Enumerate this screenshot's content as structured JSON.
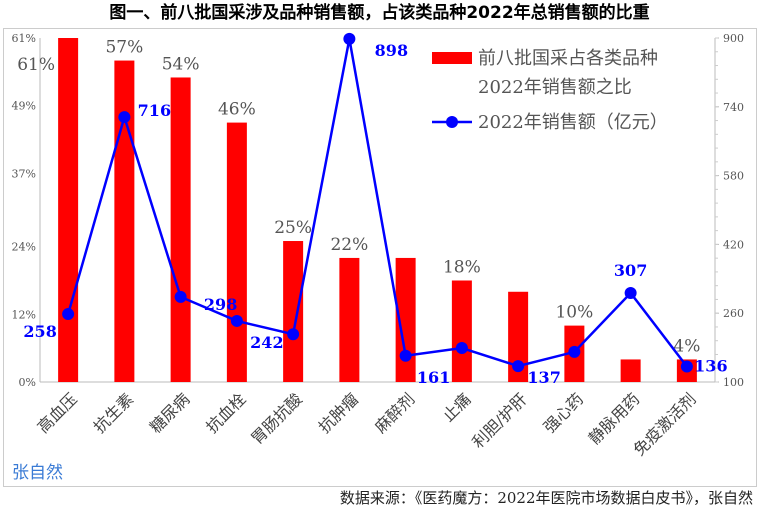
{
  "chart_data": {
    "type": "bar+line",
    "title": "图一、前八批国采涉及品种销售额，占该类品种2022年总销售额的比重",
    "categories": [
      "高血压",
      "抗生素",
      "糖尿病",
      "抗血栓",
      "胃肠抗酸",
      "抗肿瘤",
      "麻醉剂",
      "止痛",
      "利胆/护肝",
      "强心药",
      "静脉用药",
      "免疫激活剂"
    ],
    "series": [
      {
        "name": "前八批国采占各类品种2022年销售额之比",
        "type": "bar",
        "axis": "left",
        "color": "#ff0000",
        "values": [
          61,
          57,
          54,
          46,
          25,
          22,
          22,
          18,
          16,
          10,
          4,
          4
        ],
        "labels": [
          "61%",
          "57%",
          "54%",
          "46%",
          "25%",
          "22%",
          null,
          "18%",
          null,
          "10%",
          null,
          "4%"
        ]
      },
      {
        "name": "2022年销售额（亿元）",
        "type": "line",
        "axis": "right",
        "color": "#0000ff",
        "values": [
          258,
          716,
          298,
          242,
          211,
          898,
          161,
          179,
          137,
          170,
          307,
          136
        ],
        "labels": [
          "258",
          "716",
          "298",
          "242",
          null,
          "898",
          "161",
          null,
          "137",
          null,
          "307",
          "136"
        ]
      }
    ],
    "left_axis": {
      "ylim": [
        0,
        61
      ],
      "ticks": [
        "0%",
        "12%",
        "24%",
        "37%",
        "49%",
        "61%"
      ],
      "tick_values": [
        0,
        12,
        24,
        37,
        49,
        61
      ]
    },
    "right_axis": {
      "ylim": [
        100,
        900
      ],
      "ticks": [
        "100",
        "260",
        "420",
        "580",
        "740",
        "900"
      ],
      "tick_values": [
        100,
        260,
        420,
        580,
        740,
        900
      ]
    },
    "legend": {
      "position": "top-right",
      "bar_label_line1": "前八批国采占各类品种",
      "bar_label_line2": "2022年销售额之比",
      "line_label": "2022年销售额（亿元）"
    },
    "watermark": "张自然",
    "source": "数据来源：《医药魔方：2022年医院市场数据白皮书》，张自然"
  }
}
